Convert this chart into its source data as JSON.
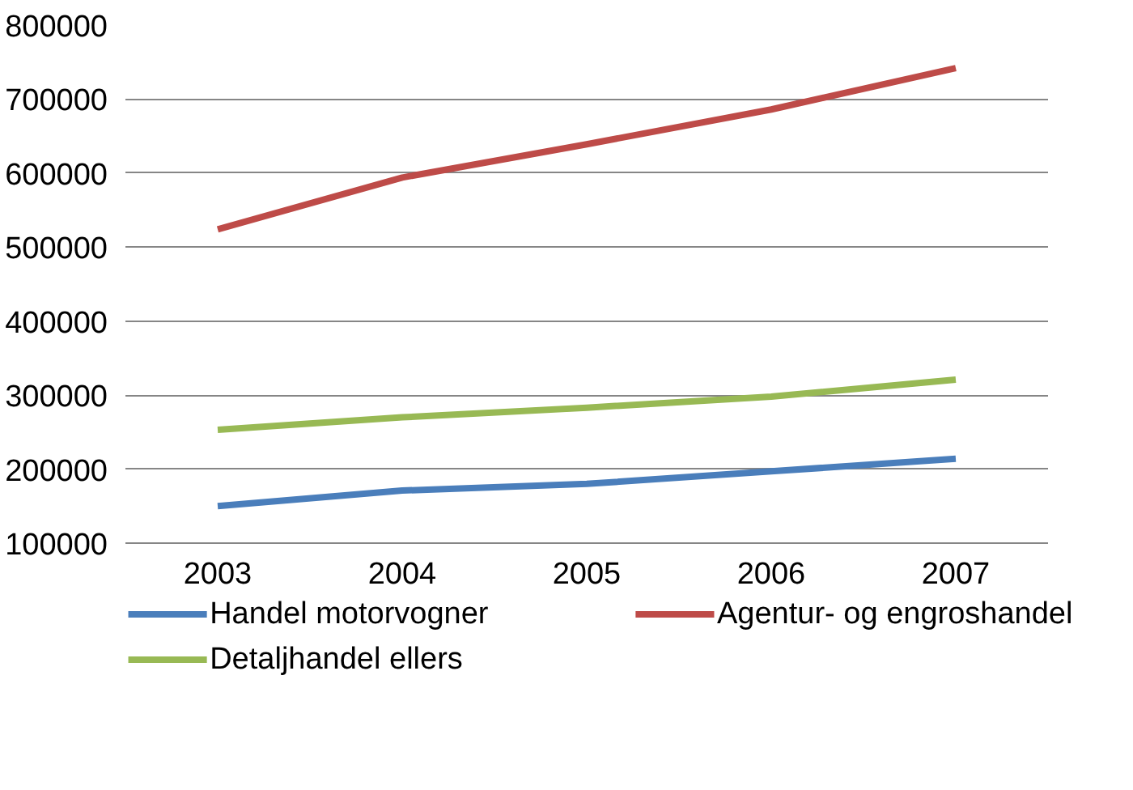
{
  "chart_data": {
    "type": "line",
    "categories": [
      "2003",
      "2004",
      "2005",
      "2006",
      "2007"
    ],
    "series": [
      {
        "name": "Handel motorvogner",
        "color": "#4a7ebb",
        "values": [
          150000,
          171000,
          180000,
          197000,
          214000
        ]
      },
      {
        "name": "Agentur- og engroshandel",
        "color": "#be4b48",
        "values": [
          524000,
          594000,
          639000,
          686000,
          742000
        ]
      },
      {
        "name": "Detaljhandel ellers",
        "color": "#98b954",
        "values": [
          253000,
          270000,
          283000,
          298000,
          321000
        ]
      }
    ],
    "ylim": [
      100000,
      800000
    ],
    "yticks": [
      100000,
      200000,
      300000,
      400000,
      500000,
      600000,
      700000,
      800000
    ],
    "grid": "y",
    "legend": "bottom",
    "marker": "none",
    "line_style": "solid"
  }
}
